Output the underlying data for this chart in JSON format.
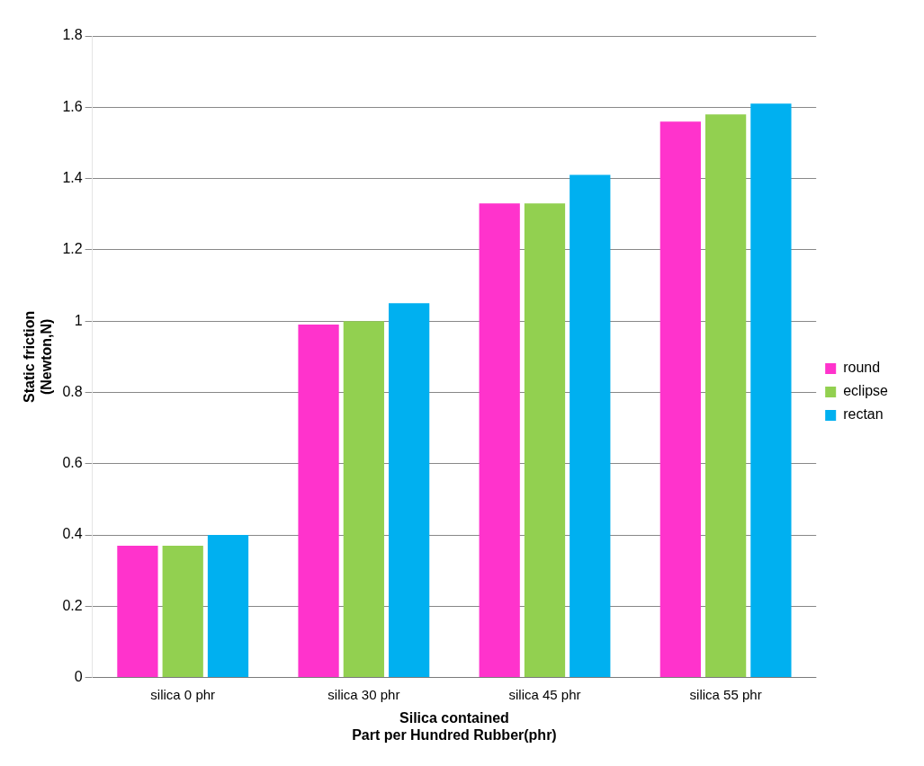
{
  "chart_data": {
    "type": "bar",
    "xlabel": "Silica contained\nPart per Hundred Rubber(phr)",
    "ylabel": "Static friction\n(Newton,N)",
    "categories": [
      "silica 0 phr",
      "silica 30 phr",
      "silica 45 phr",
      "silica 55 phr"
    ],
    "series": [
      {
        "name": "round",
        "color": "#ff33cc",
        "values": [
          0.37,
          0.99,
          1.33,
          1.56
        ]
      },
      {
        "name": "eclipse",
        "color": "#92d050",
        "values": [
          0.37,
          1.0,
          1.33,
          1.58
        ]
      },
      {
        "name": "rectan",
        "color": "#00b0f0",
        "values": [
          0.4,
          1.05,
          1.41,
          1.61
        ]
      }
    ],
    "ylim": [
      0,
      1.8
    ],
    "yticks": [
      0,
      0.2,
      0.4,
      0.6,
      0.8,
      1,
      1.2,
      1.4,
      1.6,
      1.8
    ],
    "grid": "y",
    "legend": "right"
  }
}
